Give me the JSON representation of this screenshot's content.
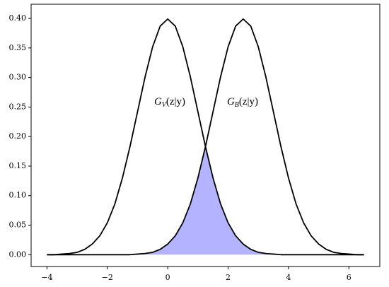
{
  "chart_data": {
    "type": "line",
    "x": [
      -4,
      -3.75,
      -3.5,
      -3.25,
      -3,
      -2.75,
      -2.5,
      -2.25,
      -2,
      -1.75,
      -1.5,
      -1.25,
      -1,
      -0.75,
      -0.5,
      -0.25,
      0,
      0.25,
      0.5,
      0.75,
      1,
      1.25,
      1.5,
      1.75,
      2,
      2.25,
      2.5,
      2.75,
      3,
      3.25,
      3.5,
      3.75,
      4,
      4.25,
      4.5,
      4.75,
      5,
      5.25,
      5.5,
      5.75,
      6,
      6.25,
      6.5
    ],
    "series": [
      {
        "color": "#000000",
        "values": [
          0,
          0,
          0.001,
          0.002,
          0.004,
          0.009,
          0.018,
          0.032,
          0.054,
          0.086,
          0.13,
          0.183,
          0.242,
          0.301,
          0.352,
          0.387,
          0.399,
          0.387,
          0.352,
          0.301,
          0.242,
          0.183,
          0.13,
          0.086,
          0.054,
          0.032,
          0.018,
          0.009,
          0.004,
          0.002,
          0.001,
          0,
          0,
          0,
          0,
          0,
          0,
          0,
          0,
          0,
          0,
          0,
          0
        ]
      },
      {
        "color": "#000000",
        "values": [
          0,
          0,
          0,
          0,
          0,
          0,
          0,
          0,
          0,
          0,
          0,
          0,
          0.001,
          0.002,
          0.004,
          0.009,
          0.018,
          0.032,
          0.054,
          0.086,
          0.13,
          0.183,
          0.242,
          0.301,
          0.352,
          0.387,
          0.399,
          0.387,
          0.352,
          0.301,
          0.242,
          0.183,
          0.13,
          0.086,
          0.054,
          0.032,
          0.018,
          0.009,
          0.004,
          0.002,
          0.001,
          0,
          0
        ]
      },
      {
        "fill": "#b3b3ff",
        "values": [
          0,
          0,
          0,
          0,
          0,
          0,
          0,
          0,
          0,
          0,
          0,
          0,
          0.001,
          0.002,
          0.004,
          0.009,
          0.018,
          0.032,
          0.054,
          0.086,
          0.13,
          0.183,
          0.13,
          0.086,
          0.054,
          0.032,
          0.018,
          0.009,
          0.004,
          0.002,
          0.001,
          0,
          0,
          0,
          0,
          0,
          0,
          0,
          0,
          0,
          0,
          0,
          0
        ]
      }
    ],
    "annotations": [
      {
        "base": "G",
        "sub": "V",
        "rest": "(z|y)"
      },
      {
        "base": "G",
        "sub": "B",
        "rest": "(z|y)"
      }
    ],
    "xlim": [
      -4.525,
      7.025
    ],
    "ylim": [
      -0.02,
      0.424
    ],
    "xticks": [
      {
        "value": -4,
        "label": "−4"
      },
      {
        "value": -2,
        "label": "−2"
      },
      0,
      2,
      4,
      6
    ],
    "yticks": [
      {
        "value": 0,
        "label": "0.00"
      },
      {
        "value": 0.05,
        "label": "0.05"
      },
      {
        "value": 0.1,
        "label": "0.10"
      },
      {
        "value": 0.15,
        "label": "0.15"
      },
      {
        "value": 0.2,
        "label": "0.20"
      },
      {
        "value": 0.25,
        "label": "0.25"
      },
      {
        "value": 0.3,
        "label": "0.30"
      },
      {
        "value": 0.35,
        "label": "0.35"
      },
      {
        "value": 0.4,
        "label": "0.40"
      }
    ]
  }
}
